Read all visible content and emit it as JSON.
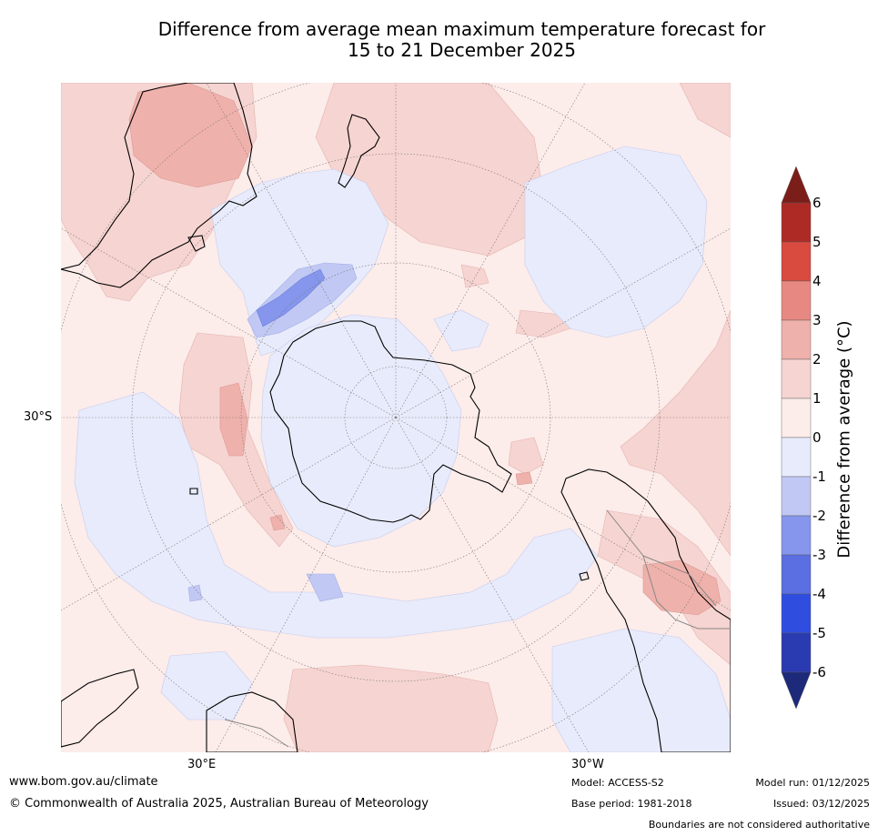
{
  "title_line1": "Difference from average mean maximum temperature forecast for",
  "title_line2": "15 to 21 December 2025",
  "axis": {
    "lat_left": "30°S",
    "lon_bottom_left": "30°E",
    "lon_bottom_right": "30°W"
  },
  "colorbar": {
    "title": "Difference from average (°C)",
    "ticks": [
      "6",
      "5",
      "4",
      "3",
      "2",
      "1",
      "0",
      "-1",
      "-2",
      "-3",
      "-4",
      "-5",
      "-6"
    ],
    "colors": {
      "over": "#7b1e1a",
      "5_6": "#ad2a25",
      "4_5": "#d94a3f",
      "3_4": "#e88882",
      "2_3": "#efb1ab",
      "1_2": "#f6d4d1",
      "0_1": "#fcecea",
      "m1_0": "#e8ebfb",
      "m2_m1": "#c1c8f3",
      "m3_m2": "#8596ec",
      "m4_m3": "#5b6fe2",
      "m5_m4": "#2f4ee0",
      "m6_m5": "#2a3ab0",
      "under": "#1d2a7a"
    }
  },
  "footer": {
    "url": "www.bom.gov.au/climate",
    "copyright": "© Commonwealth of Australia 2025, Australian Bureau of Meteorology",
    "model": "Model: ACCESS-S2",
    "base_period": "Base period: 1981-2018",
    "model_run": "Model run: 01/12/2025",
    "issued": "Issued: 03/12/2025",
    "disclaimer": "Boundaries are not considered authoritative"
  }
}
